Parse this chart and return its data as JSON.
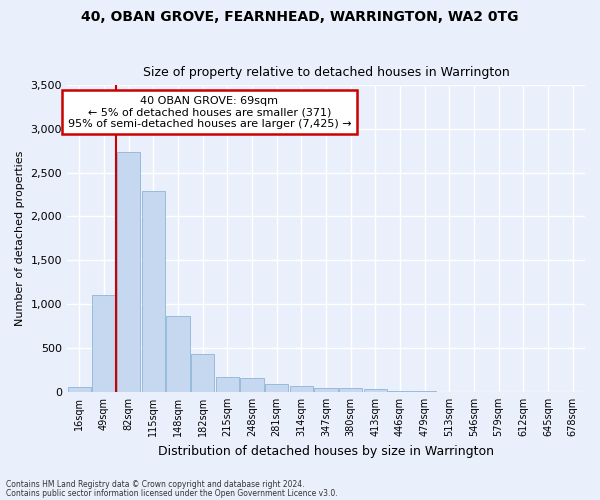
{
  "title1": "40, OBAN GROVE, FEARNHEAD, WARRINGTON, WA2 0TG",
  "title2": "Size of property relative to detached houses in Warrington",
  "xlabel": "Distribution of detached houses by size in Warrington",
  "ylabel": "Number of detached properties",
  "footer1": "Contains HM Land Registry data © Crown copyright and database right 2024.",
  "footer2": "Contains public sector information licensed under the Open Government Licence v3.0.",
  "annotation_title": "40 OBAN GROVE: 69sqm",
  "annotation_line1": "← 5% of detached houses are smaller (371)",
  "annotation_line2": "95% of semi-detached houses are larger (7,425) →",
  "bar_categories": [
    "16sqm",
    "49sqm",
    "82sqm",
    "115sqm",
    "148sqm",
    "182sqm",
    "215sqm",
    "248sqm",
    "281sqm",
    "314sqm",
    "347sqm",
    "380sqm",
    "413sqm",
    "446sqm",
    "479sqm",
    "513sqm",
    "546sqm",
    "579sqm",
    "612sqm",
    "645sqm",
    "678sqm"
  ],
  "bar_values": [
    55,
    1100,
    2730,
    2290,
    870,
    430,
    165,
    160,
    90,
    65,
    50,
    50,
    30,
    5,
    5,
    0,
    0,
    0,
    0,
    0,
    0
  ],
  "bar_color": "#c5d8f0",
  "bar_edge_color": "#8db4d8",
  "vline_color": "#cc0000",
  "vline_x": 1.5,
  "ylim": [
    0,
    3500
  ],
  "yticks": [
    0,
    500,
    1000,
    1500,
    2000,
    2500,
    3000,
    3500
  ],
  "bg_color": "#eaf0fb",
  "grid_color": "#ffffff",
  "annotation_box_facecolor": "#ffffff",
  "annotation_box_edgecolor": "#cc0000"
}
